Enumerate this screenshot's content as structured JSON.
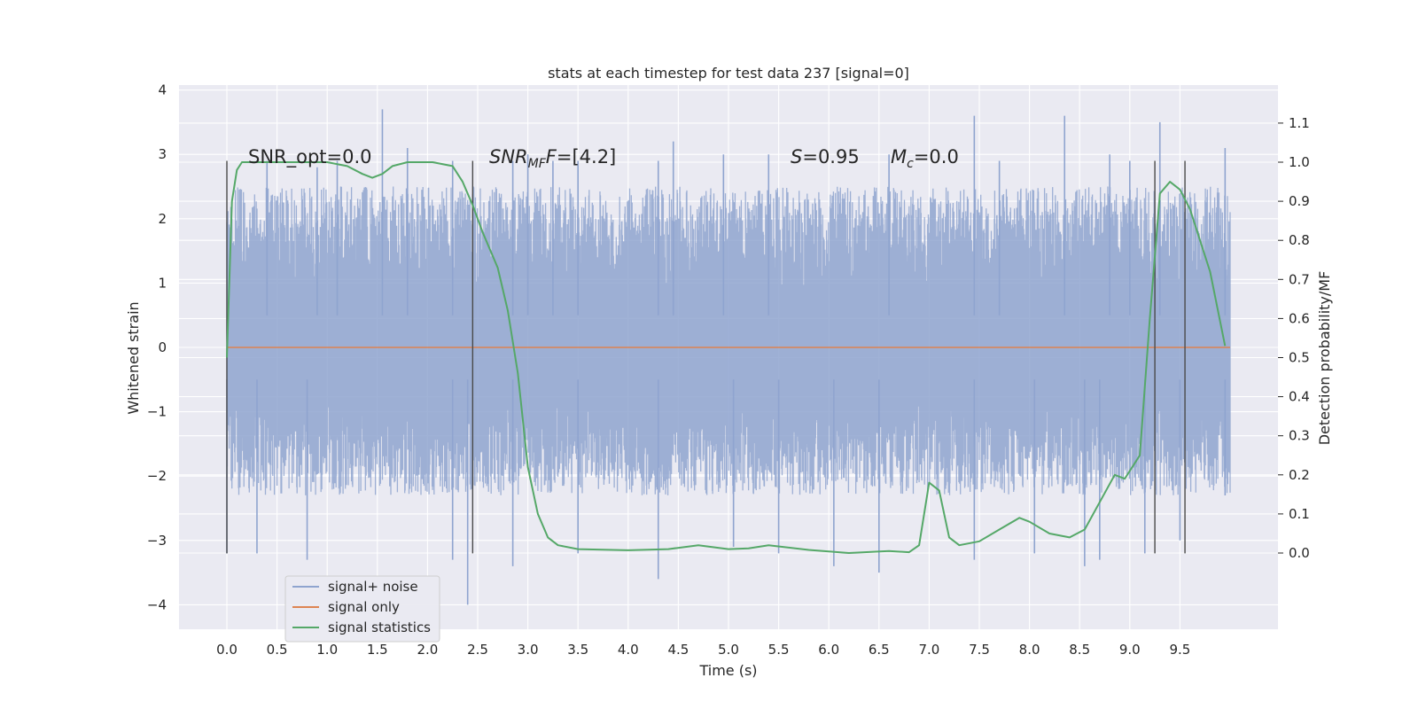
{
  "chart_data": {
    "type": "line",
    "title": "stats at each timestep for test data 237 [signal=0]",
    "xlabel": "Time (s)",
    "ylabel": "Whitened strain",
    "y2label": "Detection probability/MF",
    "xlim": [
      -0.5,
      10.5
    ],
    "ylim": [
      -4.4,
      4.1
    ],
    "y2lim": [
      -0.2,
      1.2
    ],
    "xticks": [
      0.0,
      0.5,
      1.0,
      1.5,
      2.0,
      2.5,
      3.0,
      3.5,
      4.0,
      4.5,
      5.0,
      5.5,
      6.0,
      6.5,
      7.0,
      7.5,
      8.0,
      8.5,
      9.0,
      9.5
    ],
    "xtick_labels": [
      "0.0",
      "0.5",
      "1.0",
      "1.5",
      "2.0",
      "2.5",
      "3.0",
      "3.5",
      "4.0",
      "4.5",
      "5.0",
      "5.5",
      "6.0",
      "6.5",
      "7.0",
      "7.5",
      "8.0",
      "8.5",
      "9.0",
      "9.5"
    ],
    "yticks": [
      -4,
      -3,
      -2,
      -1,
      0,
      1,
      2,
      3,
      4
    ],
    "ytick_labels": [
      "−4",
      "−3",
      "−2",
      "−1",
      "0",
      "1",
      "2",
      "3",
      "4"
    ],
    "y2ticks": [
      0.0,
      0.1,
      0.2,
      0.3,
      0.4,
      0.5,
      0.6,
      0.7,
      0.8,
      0.9,
      1.0,
      1.1
    ],
    "y2tick_labels": [
      "0.0",
      "0.1",
      "0.2",
      "0.3",
      "0.4",
      "0.5",
      "0.6",
      "0.7",
      "0.8",
      "0.9",
      "1.0",
      "1.1"
    ],
    "grid": true,
    "legend_position": "lower-left",
    "series": [
      {
        "name": "signal+ noise",
        "axis": "left",
        "color": "#8fa4cf",
        "description_range": {
          "x_start": 0.0,
          "x_end": 10.0,
          "band_min": -2.3,
          "band_max": 2.5
        },
        "peaks_up": [
          [
            0.4,
            2.9
          ],
          [
            0.9,
            2.8
          ],
          [
            1.1,
            2.9
          ],
          [
            1.55,
            3.7
          ],
          [
            1.8,
            3.1
          ],
          [
            2.25,
            2.9
          ],
          [
            2.85,
            2.9
          ],
          [
            3.0,
            3.0
          ],
          [
            3.25,
            2.9
          ],
          [
            3.5,
            2.9
          ],
          [
            4.3,
            2.9
          ],
          [
            4.45,
            3.2
          ],
          [
            4.95,
            3.0
          ],
          [
            5.4,
            3.0
          ],
          [
            6.6,
            3.0
          ],
          [
            7.45,
            3.6
          ],
          [
            7.7,
            2.9
          ],
          [
            8.35,
            3.6
          ],
          [
            8.8,
            3.0
          ],
          [
            9.0,
            2.9
          ],
          [
            9.3,
            3.5
          ],
          [
            9.95,
            3.1
          ]
        ],
        "peaks_down": [
          [
            0.0,
            -3.2
          ],
          [
            0.3,
            -3.2
          ],
          [
            0.8,
            -3.3
          ],
          [
            2.25,
            -3.3
          ],
          [
            2.4,
            -4.0
          ],
          [
            2.85,
            -3.4
          ],
          [
            3.5,
            -3.2
          ],
          [
            4.3,
            -3.6
          ],
          [
            5.05,
            -3.1
          ],
          [
            5.5,
            -3.2
          ],
          [
            6.05,
            -3.4
          ],
          [
            6.5,
            -3.5
          ],
          [
            7.45,
            -3.3
          ],
          [
            8.05,
            -3.2
          ],
          [
            8.55,
            -3.4
          ],
          [
            8.7,
            -3.3
          ],
          [
            9.15,
            -3.2
          ],
          [
            9.5,
            -3.0
          ],
          [
            9.95,
            -2.3
          ]
        ]
      },
      {
        "name": "signal only",
        "axis": "left",
        "color": "#dd8452",
        "x": [
          0.0,
          10.0
        ],
        "y": [
          0.0,
          0.0
        ]
      },
      {
        "name": "signal statistics",
        "axis": "right",
        "color": "#55a868",
        "x": [
          0.0,
          0.05,
          0.1,
          0.15,
          0.2,
          0.3,
          0.5,
          1.0,
          1.2,
          1.35,
          1.45,
          1.55,
          1.65,
          1.8,
          1.9,
          2.05,
          2.25,
          2.35,
          2.45,
          2.55,
          2.7,
          2.8,
          2.9,
          3.0,
          3.1,
          3.2,
          3.3,
          3.5,
          4.0,
          4.4,
          4.7,
          5.0,
          5.2,
          5.4,
          5.8,
          6.2,
          6.6,
          6.8,
          6.9,
          7.0,
          7.1,
          7.2,
          7.3,
          7.5,
          7.7,
          7.9,
          8.0,
          8.2,
          8.4,
          8.55,
          8.7,
          8.85,
          8.95,
          9.1,
          9.2,
          9.3,
          9.4,
          9.5,
          9.6,
          9.8,
          9.95
        ],
        "y": [
          0.5,
          0.9,
          0.98,
          1.0,
          1.0,
          1.0,
          1.0,
          1.0,
          0.99,
          0.97,
          0.96,
          0.97,
          0.99,
          1.0,
          1.0,
          1.0,
          0.99,
          0.95,
          0.89,
          0.82,
          0.73,
          0.62,
          0.46,
          0.22,
          0.1,
          0.04,
          0.02,
          0.01,
          0.007,
          0.01,
          0.02,
          0.01,
          0.012,
          0.02,
          0.008,
          0.0,
          0.005,
          0.002,
          0.02,
          0.18,
          0.16,
          0.04,
          0.02,
          0.03,
          0.06,
          0.09,
          0.08,
          0.05,
          0.04,
          0.06,
          0.13,
          0.2,
          0.19,
          0.25,
          0.6,
          0.92,
          0.95,
          0.93,
          0.88,
          0.72,
          0.53
        ]
      }
    ],
    "vertical_lines": [
      0.0,
      2.45,
      9.25,
      9.55
    ],
    "annotations": {
      "snr_opt": "SNR_opt=0.0",
      "snr_mf_main": "SNR",
      "snr_mf_sub": "MF",
      "snr_mf_value": "=[4.2]",
      "s_main": "S",
      "s_value": "=0.95",
      "mc_main": "M",
      "mc_sub": "c",
      "mc_value": "=0.0"
    }
  }
}
